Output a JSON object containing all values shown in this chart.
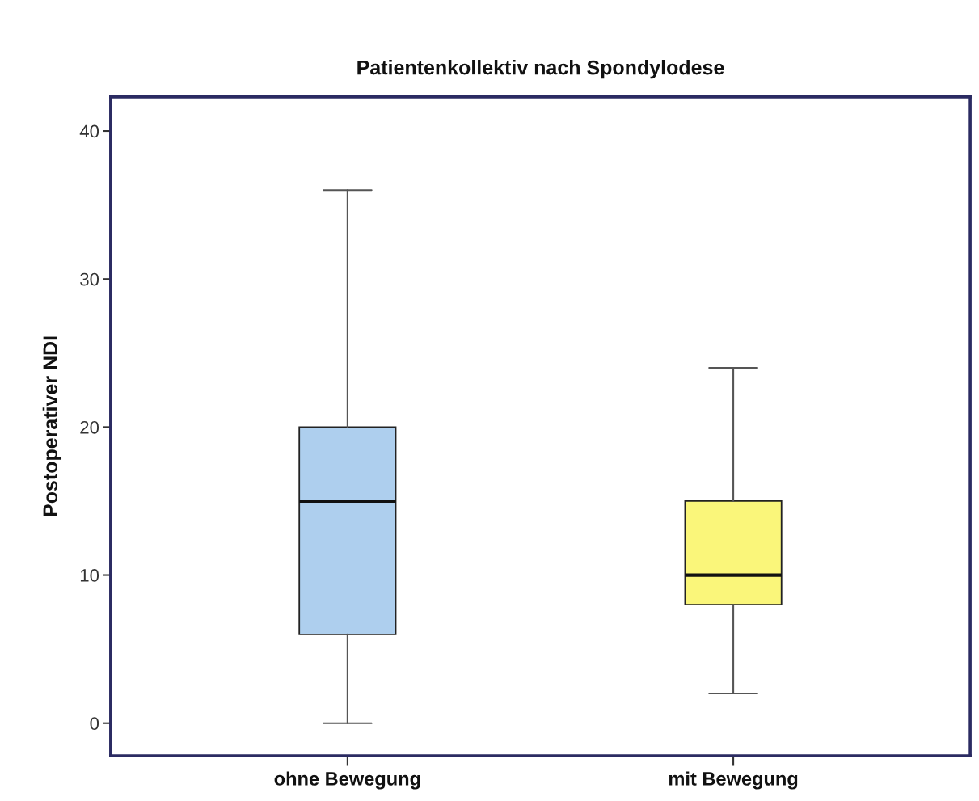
{
  "chart_data": {
    "type": "box",
    "title": "Patientenkollektiv nach Spondylodese",
    "ylabel": "Postoperativer NDI",
    "categories": [
      "ohne Bewegung",
      "mit Bewegung"
    ],
    "boxes": [
      {
        "low": 0,
        "q1": 6,
        "median": 15,
        "q3": 20,
        "high": 36
      },
      {
        "low": 2,
        "q1": 8,
        "median": 10,
        "q3": 15,
        "high": 24
      }
    ],
    "colors": [
      "#aecfee",
      "#faf67a"
    ],
    "ylim": [
      -2.2,
      42.3
    ],
    "yticks": [
      0,
      10,
      20,
      30,
      40
    ]
  }
}
